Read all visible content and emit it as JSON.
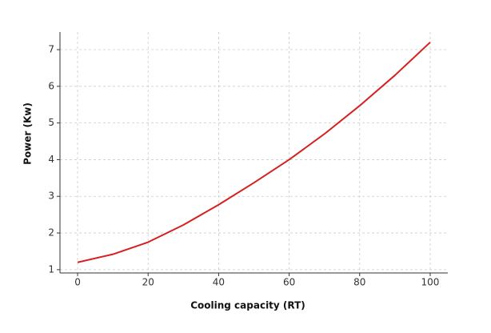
{
  "chart_data": {
    "type": "line",
    "x_label": "Cooling capacity (RT)",
    "y_label": "Power (Kw)",
    "x": [
      0,
      10,
      20,
      30,
      40,
      50,
      60,
      70,
      80,
      90,
      100
    ],
    "series": [
      {
        "color": "#d62020",
        "values": [
          1.2,
          1.42,
          1.75,
          2.22,
          2.77,
          3.37,
          4.0,
          4.7,
          5.47,
          6.3,
          7.2
        ]
      }
    ],
    "xlim": [
      -5,
      105
    ],
    "ylim": [
      0.91,
      7.48
    ],
    "xticks": [
      0,
      20,
      40,
      60,
      80,
      100
    ],
    "yticks": [
      1,
      2,
      3,
      4,
      5,
      6,
      7
    ],
    "grid": true
  }
}
